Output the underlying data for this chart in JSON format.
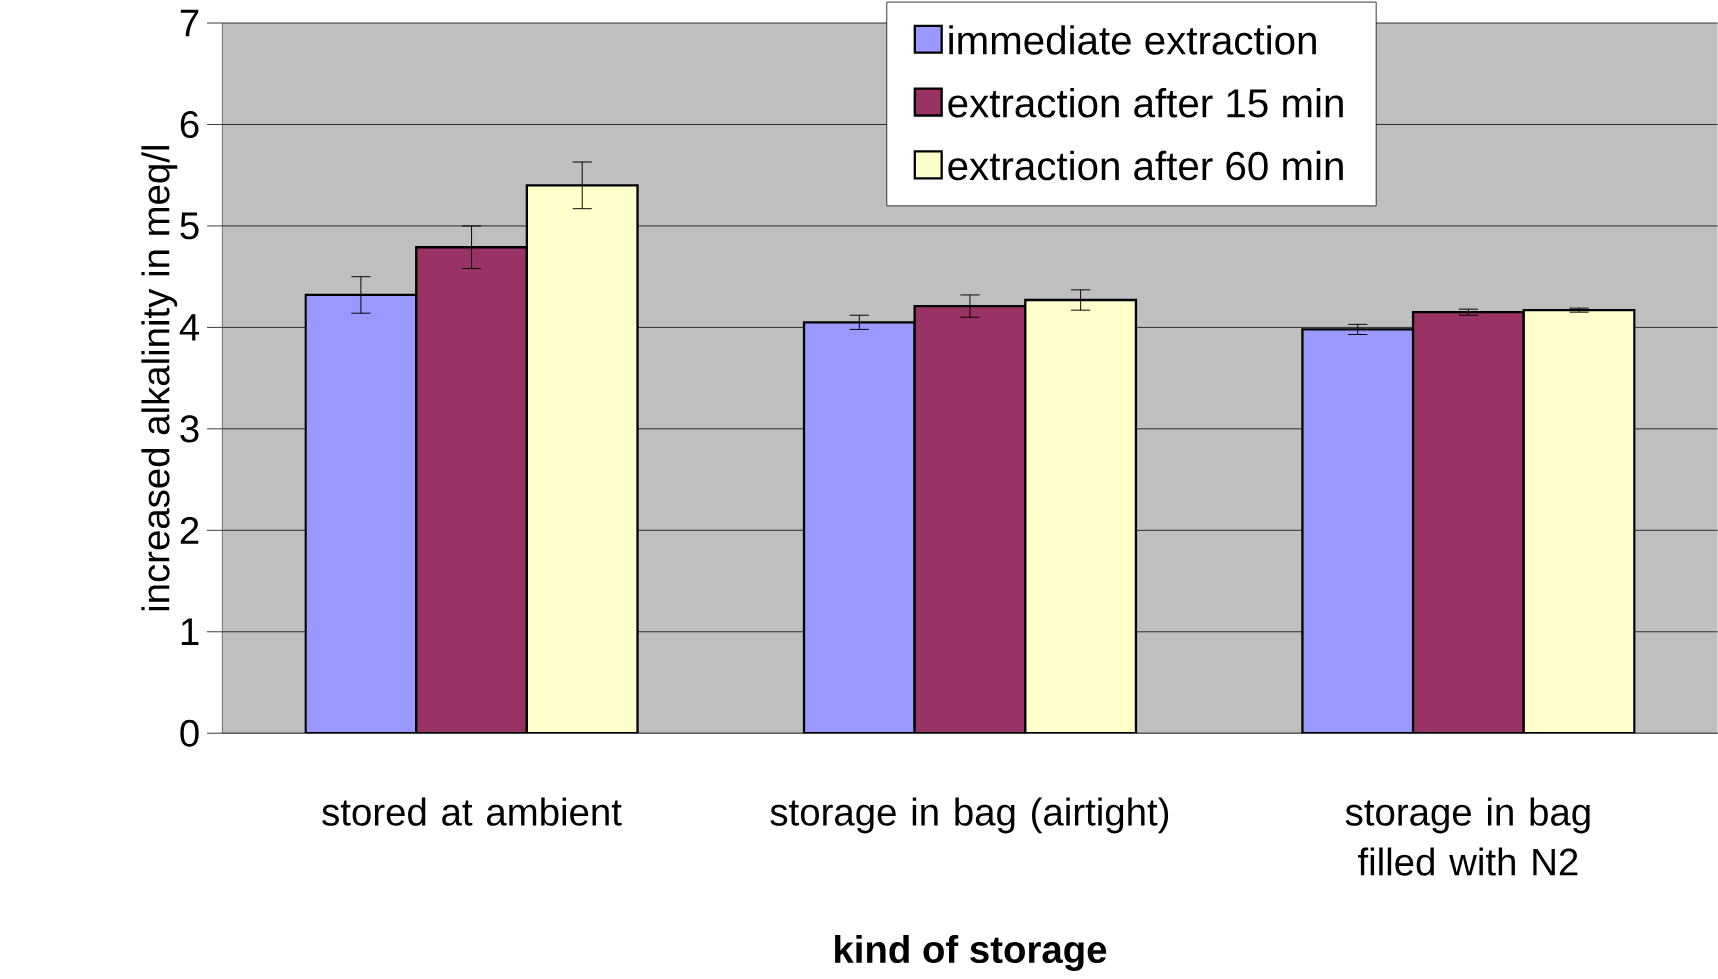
{
  "chart_data": {
    "type": "bar",
    "xlabel": "**kind of storage**",
    "ylabel": "increased alkalinity in meq/l",
    "categories": [
      "stored at ambient",
      "storage in bag (airtight)",
      "storage in bag filled with N2"
    ],
    "series": [
      {
        "name": "immediate extraction",
        "color": "#9999ff",
        "values": [
          4.32,
          4.05,
          3.98
        ],
        "errors": [
          0.18,
          0.07,
          0.05
        ]
      },
      {
        "name": "extraction after 15 min",
        "color": "#993366",
        "values": [
          4.79,
          4.21,
          4.15
        ],
        "errors": [
          0.21,
          0.11,
          0.03
        ]
      },
      {
        "name": "extraction after 60 min",
        "color": "#ffffcc",
        "values": [
          5.4,
          4.27,
          4.17
        ],
        "errors": [
          0.23,
          0.1,
          0.02
        ]
      }
    ],
    "ylim": [
      0,
      7
    ],
    "yticks": [
      0,
      1,
      2,
      3,
      4,
      5,
      6,
      7
    ],
    "grid": "y",
    "legend": "top"
  }
}
